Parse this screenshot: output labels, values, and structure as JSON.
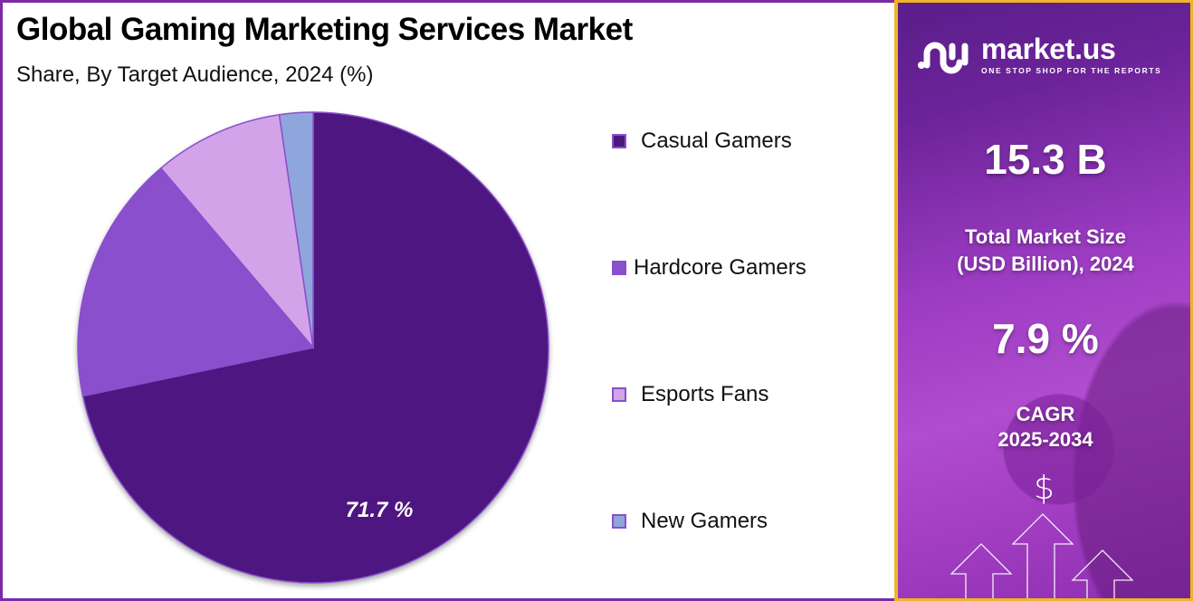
{
  "header": {
    "title": "Global Gaming Marketing Services Market",
    "subtitle": "Share, By Target Audience, 2024 (%)"
  },
  "legend": {
    "items": [
      {
        "label": "Casual Gamers",
        "color": "#4e1780"
      },
      {
        "label": "Hardcore Gamers",
        "color": "#8a4fcc"
      },
      {
        "label": "Esports Fans",
        "color": "#d3a3ea"
      },
      {
        "label": "New Gamers",
        "color": "#8ea6dc"
      }
    ]
  },
  "pie": {
    "center_label": "71.7 %",
    "stroke_color": "#8a4fcc"
  },
  "sidebar": {
    "logo_name": "market.us",
    "logo_tagline": "ONE STOP SHOP FOR THE REPORTS",
    "market_size_value": "15.3 B",
    "market_size_label_line1": "Total Market Size",
    "market_size_label_line2": "(USD Billion), 2024",
    "cagr_value": "7.9 %",
    "cagr_label_line1": "CAGR",
    "cagr_label_line2": "2025-2034",
    "dollar_icon": "$",
    "border_color": "#f0b429"
  },
  "chart_data": {
    "type": "pie",
    "title": "Global Gaming Marketing Services Market",
    "subtitle": "Share, By Target Audience, 2024 (%)",
    "categories": [
      "Casual Gamers",
      "Hardcore Gamers",
      "Esports Fans",
      "New Gamers"
    ],
    "values": [
      71.7,
      17.1,
      8.9,
      2.3
    ],
    "colors": [
      "#4e1780",
      "#8a4fcc",
      "#d3a3ea",
      "#8ea6dc"
    ],
    "labeled_values": {
      "Casual Gamers": 71.7
    },
    "start_angle": "12 o'clock, clockwise",
    "legend_position": "right",
    "annotations": {
      "total_market_size_usd_billion_2024": 15.3,
      "cagr_2025_2034_percent": 7.9
    }
  }
}
